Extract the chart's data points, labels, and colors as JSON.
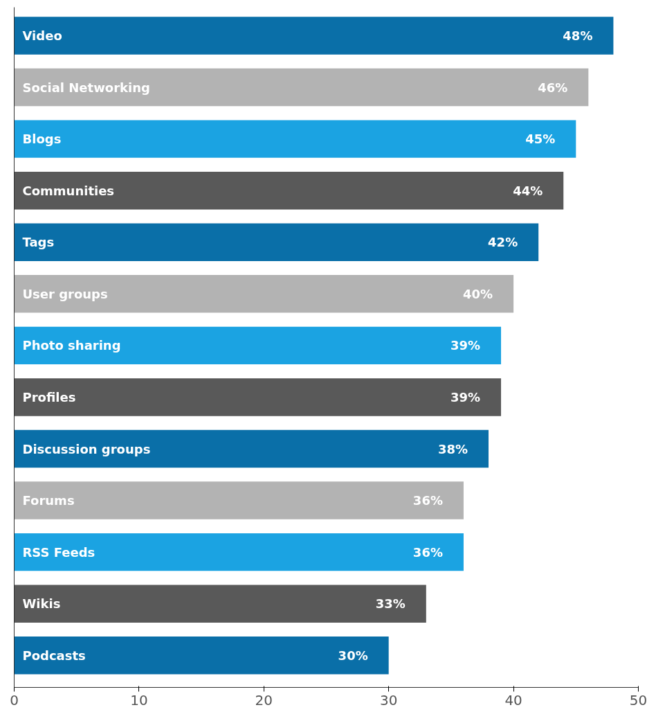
{
  "chart_data": {
    "type": "bar",
    "orientation": "horizontal",
    "categories": [
      "Video",
      "Social Networking",
      "Blogs",
      "Communities",
      "Tags",
      "User groups",
      "Photo sharing",
      "Profiles",
      "Discussion groups",
      "Forums",
      "RSS Feeds",
      "Wikis",
      "Podcasts"
    ],
    "values": [
      48,
      46,
      45,
      44,
      42,
      40,
      39,
      39,
      38,
      36,
      36,
      33,
      30
    ],
    "colors": [
      "#0a6fa8",
      "#b3b3b3",
      "#1ba3e2",
      "#595959",
      "#0a6fa8",
      "#b3b3b3",
      "#1ba3e2",
      "#595959",
      "#0a6fa8",
      "#b3b3b3",
      "#1ba3e2",
      "#595959",
      "#0a6fa8"
    ],
    "value_labels": [
      "48%",
      "46%",
      "45%",
      "44%",
      "42%",
      "40%",
      "39%",
      "39%",
      "38%",
      "36%",
      "36%",
      "33%",
      "30%"
    ],
    "xlim": [
      0,
      50
    ],
    "xticks": [
      0,
      10,
      20,
      30,
      40,
      50
    ]
  }
}
